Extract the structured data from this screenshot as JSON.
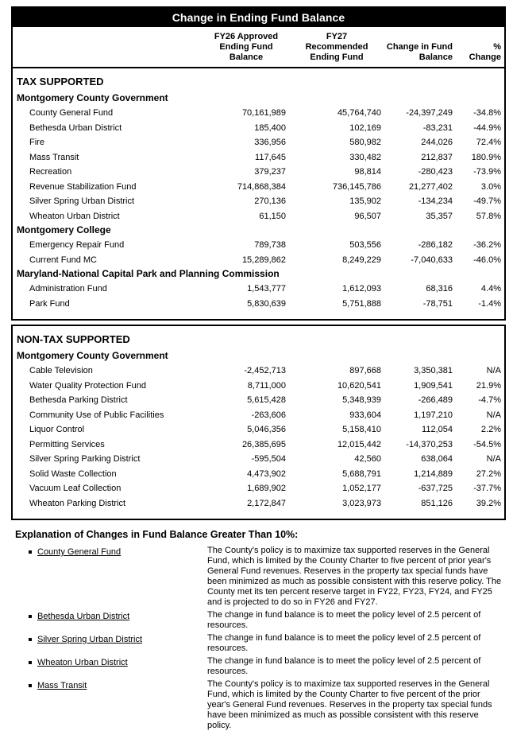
{
  "title": "Change in Ending Fund Balance",
  "columns": {
    "label": "",
    "fy26": "FY26 Approved\nEnding Fund\nBalance",
    "fy27": "FY27\nRecommended\nEnding Fund",
    "change": "Change in Fund\nBalance",
    "pct": "%\nChange"
  },
  "sections": [
    {
      "heading": "TAX SUPPORTED",
      "groups": [
        {
          "name": "Montgomery County Government",
          "rows": [
            {
              "label": "County General Fund",
              "fy26": "70,161,989",
              "fy27": "45,764,740",
              "change": "-24,397,249",
              "pct": "-34.8%"
            },
            {
              "label": "Bethesda Urban District",
              "fy26": "185,400",
              "fy27": "102,169",
              "change": "-83,231",
              "pct": "-44.9%"
            },
            {
              "label": "Fire",
              "fy26": "336,956",
              "fy27": "580,982",
              "change": "244,026",
              "pct": "72.4%"
            },
            {
              "label": "Mass Transit",
              "fy26": "117,645",
              "fy27": "330,482",
              "change": "212,837",
              "pct": "180.9%"
            },
            {
              "label": "Recreation",
              "fy26": "379,237",
              "fy27": "98,814",
              "change": "-280,423",
              "pct": "-73.9%"
            },
            {
              "label": "Revenue Stabilization Fund",
              "fy26": "714,868,384",
              "fy27": "736,145,786",
              "change": "21,277,402",
              "pct": "3.0%"
            },
            {
              "label": "Silver Spring Urban District",
              "fy26": "270,136",
              "fy27": "135,902",
              "change": "-134,234",
              "pct": "-49.7%"
            },
            {
              "label": "Wheaton Urban District",
              "fy26": "61,150",
              "fy27": "96,507",
              "change": "35,357",
              "pct": "57.8%"
            }
          ]
        },
        {
          "name": "Montgomery College",
          "rows": [
            {
              "label": "Emergency Repair Fund",
              "fy26": "789,738",
              "fy27": "503,556",
              "change": "-286,182",
              "pct": "-36.2%"
            },
            {
              "label": "Current Fund MC",
              "fy26": "15,289,862",
              "fy27": "8,249,229",
              "change": "-7,040,633",
              "pct": "-46.0%"
            }
          ]
        },
        {
          "name": "Maryland-National Capital Park and Planning Commission",
          "rows": [
            {
              "label": "Administration Fund",
              "fy26": "1,543,777",
              "fy27": "1,612,093",
              "change": "68,316",
              "pct": "4.4%"
            },
            {
              "label": "Park Fund",
              "fy26": "5,830,639",
              "fy27": "5,751,888",
              "change": "-78,751",
              "pct": "-1.4%"
            }
          ]
        }
      ]
    },
    {
      "heading": "NON-TAX SUPPORTED",
      "groups": [
        {
          "name": "Montgomery County Government",
          "rows": [
            {
              "label": "Cable Television",
              "fy26": "-2,452,713",
              "fy27": "897,668",
              "change": "3,350,381",
              "pct": "N/A"
            },
            {
              "label": "Water Quality Protection Fund",
              "fy26": "8,711,000",
              "fy27": "10,620,541",
              "change": "1,909,541",
              "pct": "21.9%"
            },
            {
              "label": "Bethesda Parking District",
              "fy26": "5,615,428",
              "fy27": "5,348,939",
              "change": "-266,489",
              "pct": "-4.7%"
            },
            {
              "label": "Community Use of Public Facilities",
              "fy26": "-263,606",
              "fy27": "933,604",
              "change": "1,197,210",
              "pct": "N/A"
            },
            {
              "label": "Liquor Control",
              "fy26": "5,046,356",
              "fy27": "5,158,410",
              "change": "112,054",
              "pct": "2.2%"
            },
            {
              "label": "Permitting Services",
              "fy26": "26,385,695",
              "fy27": "12,015,442",
              "change": "-14,370,253",
              "pct": "-54.5%"
            },
            {
              "label": "Silver Spring Parking District",
              "fy26": "-595,504",
              "fy27": "42,560",
              "change": "638,064",
              "pct": "N/A"
            },
            {
              "label": "Solid Waste Collection",
              "fy26": "4,473,902",
              "fy27": "5,688,791",
              "change": "1,214,889",
              "pct": "27.2%"
            },
            {
              "label": "Vacuum Leaf Collection",
              "fy26": "1,689,902",
              "fy27": "1,052,177",
              "change": "-637,725",
              "pct": "-37.7%"
            },
            {
              "label": "Wheaton Parking District",
              "fy26": "2,172,847",
              "fy27": "3,023,973",
              "change": "851,126",
              "pct": "39.2%"
            }
          ]
        }
      ]
    }
  ],
  "explanation": {
    "heading": "Explanation of Changes in Fund Balance Greater Than 10%:",
    "items": [
      {
        "name": "County General Fund",
        "text": "The County's policy is to maximize tax supported reserves in the General Fund, which is limited by the County Charter to five percent of prior year's General Fund revenues.  Reserves in the property tax special funds have been minimized as much as possible consistent with this reserve policy.  The County met its ten percent reserve target in FY22, FY23, FY24, and FY25 and is projected to do so in FY26 and FY27."
      },
      {
        "name": "Bethesda Urban District",
        "text": "The change in fund balance is to meet the policy level of 2.5 percent of resources."
      },
      {
        "name": "Silver Spring Urban District",
        "text": "The change in fund balance is to meet the policy level of 2.5 percent of resources."
      },
      {
        "name": "Wheaton Urban District",
        "text": "The change in fund balance is to meet the policy level of 2.5 percent of resources."
      },
      {
        "name": "Mass Transit",
        "text": "The County's policy is to maximize tax supported reserves in the General Fund, which is limited by the County Charter to five percent of the prior year's General Fund revenues.  Reserves in the property tax special funds have been minimized as much as possible consistent with this reserve policy."
      }
    ]
  },
  "colors": {
    "title_bg": "#000000",
    "title_text": "#ffffff",
    "body_text": "#000000",
    "background": "#ffffff"
  }
}
